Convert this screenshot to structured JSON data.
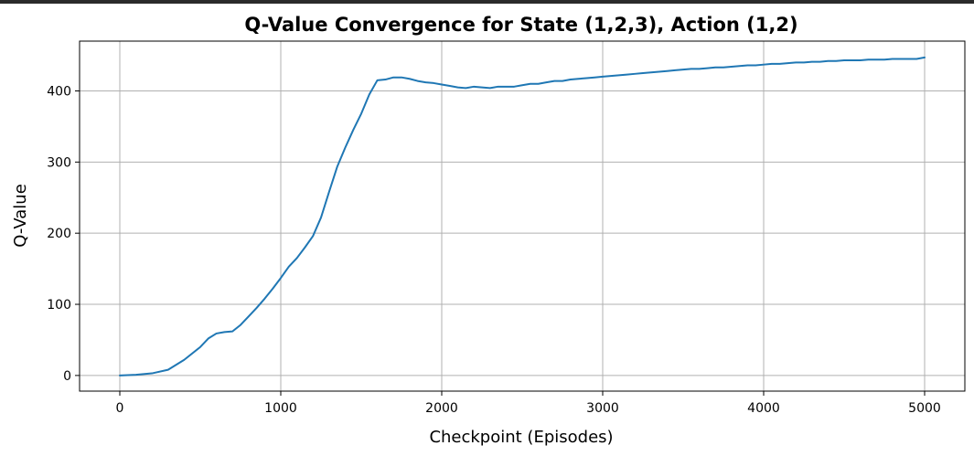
{
  "chart_data": {
    "type": "line",
    "title": "Q-Value Convergence for State (1,2,3), Action (1,2)",
    "xlabel": "Checkpoint (Episodes)",
    "ylabel": "Q-Value",
    "xlim": [
      -250,
      5250
    ],
    "ylim": [
      -22,
      470
    ],
    "xticks": [
      0,
      1000,
      2000,
      3000,
      4000,
      5000
    ],
    "xtick_labels": [
      "0",
      "1000",
      "2000",
      "3000",
      "4000",
      "5000"
    ],
    "yticks": [
      0,
      100,
      200,
      300,
      400
    ],
    "ytick_labels": [
      "0",
      "100",
      "200",
      "300",
      "400"
    ],
    "grid": true,
    "legend": "none",
    "series": [
      {
        "color": "#1f77b4",
        "points": [
          [
            0,
            0
          ],
          [
            100,
            1
          ],
          [
            200,
            3
          ],
          [
            300,
            8
          ],
          [
            400,
            22
          ],
          [
            500,
            40
          ],
          [
            550,
            52
          ],
          [
            600,
            59
          ],
          [
            650,
            61
          ],
          [
            700,
            62
          ],
          [
            750,
            71
          ],
          [
            800,
            83
          ],
          [
            850,
            95
          ],
          [
            900,
            108
          ],
          [
            950,
            122
          ],
          [
            1000,
            137
          ],
          [
            1050,
            153
          ],
          [
            1100,
            165
          ],
          [
            1150,
            180
          ],
          [
            1200,
            196
          ],
          [
            1250,
            222
          ],
          [
            1300,
            258
          ],
          [
            1350,
            293
          ],
          [
            1400,
            320
          ],
          [
            1450,
            345
          ],
          [
            1500,
            368
          ],
          [
            1550,
            395
          ],
          [
            1600,
            415
          ],
          [
            1650,
            416
          ],
          [
            1700,
            419
          ],
          [
            1750,
            419
          ],
          [
            1800,
            417
          ],
          [
            1850,
            414
          ],
          [
            1900,
            412
          ],
          [
            1950,
            411
          ],
          [
            2000,
            409
          ],
          [
            2050,
            407
          ],
          [
            2100,
            405
          ],
          [
            2150,
            404
          ],
          [
            2200,
            406
          ],
          [
            2250,
            405
          ],
          [
            2300,
            404
          ],
          [
            2350,
            406
          ],
          [
            2400,
            406
          ],
          [
            2450,
            406
          ],
          [
            2500,
            408
          ],
          [
            2550,
            410
          ],
          [
            2600,
            410
          ],
          [
            2650,
            412
          ],
          [
            2700,
            414
          ],
          [
            2750,
            414
          ],
          [
            2800,
            416
          ],
          [
            2850,
            417
          ],
          [
            2900,
            418
          ],
          [
            2950,
            419
          ],
          [
            3000,
            420
          ],
          [
            3050,
            421
          ],
          [
            3100,
            422
          ],
          [
            3150,
            423
          ],
          [
            3200,
            424
          ],
          [
            3250,
            425
          ],
          [
            3300,
            426
          ],
          [
            3350,
            427
          ],
          [
            3400,
            428
          ],
          [
            3450,
            429
          ],
          [
            3500,
            430
          ],
          [
            3550,
            431
          ],
          [
            3600,
            431
          ],
          [
            3650,
            432
          ],
          [
            3700,
            433
          ],
          [
            3750,
            433
          ],
          [
            3800,
            434
          ],
          [
            3850,
            435
          ],
          [
            3900,
            436
          ],
          [
            3950,
            436
          ],
          [
            4000,
            437
          ],
          [
            4050,
            438
          ],
          [
            4100,
            438
          ],
          [
            4150,
            439
          ],
          [
            4200,
            440
          ],
          [
            4250,
            440
          ],
          [
            4300,
            441
          ],
          [
            4350,
            441
          ],
          [
            4400,
            442
          ],
          [
            4450,
            442
          ],
          [
            4500,
            443
          ],
          [
            4550,
            443
          ],
          [
            4600,
            443
          ],
          [
            4650,
            444
          ],
          [
            4700,
            444
          ],
          [
            4750,
            444
          ],
          [
            4800,
            445
          ],
          [
            4850,
            445
          ],
          [
            4900,
            445
          ],
          [
            4950,
            445
          ],
          [
            5000,
            447
          ]
        ]
      }
    ]
  }
}
